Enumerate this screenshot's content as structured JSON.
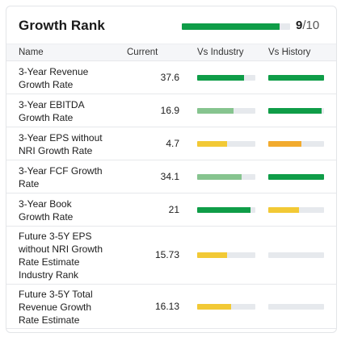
{
  "colors": {
    "green": "#0f9d48",
    "light_green": "#86c48f",
    "yellow": "#f2c935",
    "orange": "#f2ab2e",
    "track": "#e6e9ed"
  },
  "header": {
    "title": "Growth Rank",
    "score": "9",
    "score_max": "/10",
    "score_fraction": 0.9
  },
  "columns": {
    "name": "Name",
    "current": "Current",
    "vs_industry": "Vs Industry",
    "vs_history": "Vs History"
  },
  "rows": [
    {
      "name_lines": [
        "3-Year Revenue",
        "Growth Rate"
      ],
      "current": "37.6",
      "industry": {
        "fraction": 0.8,
        "color": "green"
      },
      "history": {
        "fraction": 1.0,
        "color": "green"
      }
    },
    {
      "name_lines": [
        "3-Year EBITDA",
        "Growth Rate"
      ],
      "current": "16.9",
      "industry": {
        "fraction": 0.62,
        "color": "light_green"
      },
      "history": {
        "fraction": 0.95,
        "color": "green"
      }
    },
    {
      "name_lines": [
        "3-Year EPS without",
        "NRI Growth Rate"
      ],
      "current": "4.7",
      "industry": {
        "fraction": 0.52,
        "color": "yellow"
      },
      "history": {
        "fraction": 0.6,
        "color": "orange"
      }
    },
    {
      "name_lines": [
        "3-Year FCF Growth",
        "Rate"
      ],
      "current": "34.1",
      "industry": {
        "fraction": 0.76,
        "color": "light_green"
      },
      "history": {
        "fraction": 1.0,
        "color": "green"
      }
    },
    {
      "name_lines": [
        "3-Year Book",
        "Growth Rate"
      ],
      "current": "21",
      "industry": {
        "fraction": 0.92,
        "color": "green"
      },
      "history": {
        "fraction": 0.55,
        "color": "yellow"
      }
    },
    {
      "name_lines": [
        "Future 3-5Y EPS",
        "without NRI Growth",
        "Rate Estimate",
        "Industry Rank"
      ],
      "current": "15.73",
      "industry": {
        "fraction": 0.52,
        "color": "yellow"
      },
      "history": {
        "fraction": 0,
        "color": "green"
      }
    },
    {
      "name_lines": [
        "Future 3-5Y Total",
        "Revenue Growth",
        "Rate Estimate"
      ],
      "current": "16.13",
      "industry": {
        "fraction": 0.58,
        "color": "yellow"
      },
      "history": {
        "fraction": 0,
        "color": "green"
      }
    }
  ]
}
